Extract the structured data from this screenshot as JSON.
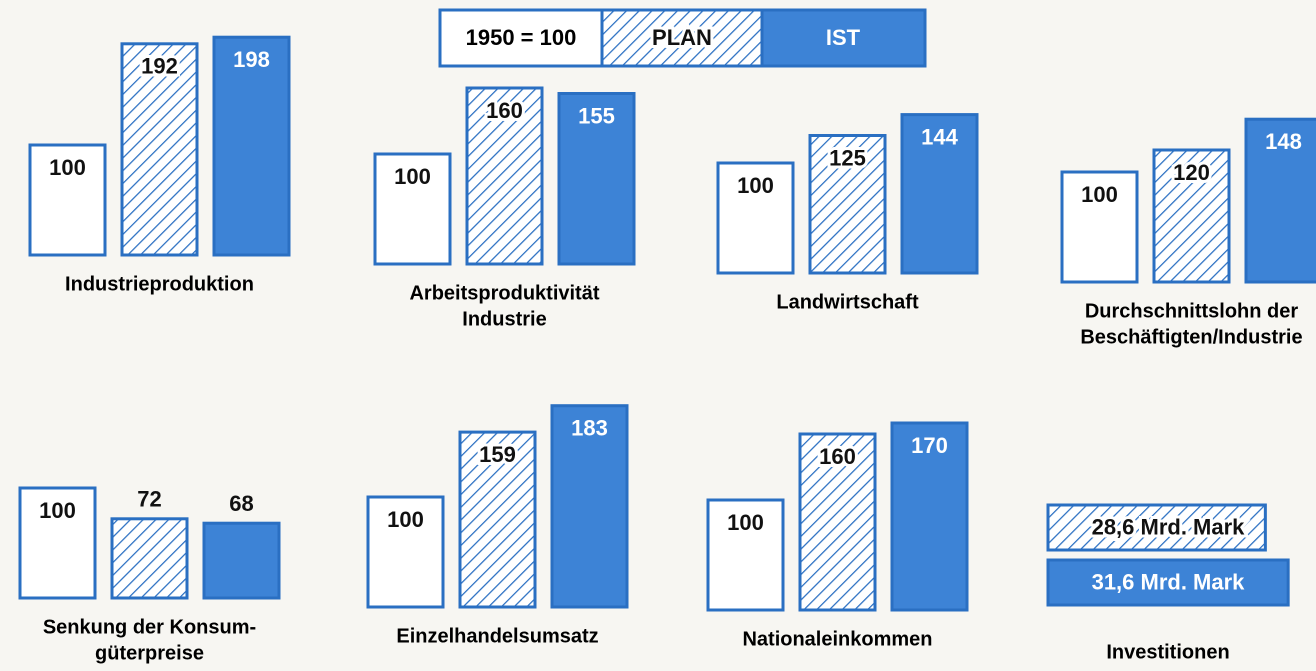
{
  "legend": {
    "base": "1950 = 100",
    "plan": "PLAN",
    "ist": "IST"
  },
  "chart_data": [
    {
      "type": "bar",
      "title": [
        "Industrieproduktion"
      ],
      "values": [
        100,
        192,
        198
      ]
    },
    {
      "type": "bar",
      "title": [
        "Arbeitsproduktivität",
        "Industrie"
      ],
      "values": [
        100,
        160,
        155
      ]
    },
    {
      "type": "bar",
      "title": [
        "Landwirtschaft"
      ],
      "values": [
        100,
        125,
        144
      ]
    },
    {
      "type": "bar",
      "title": [
        "Durchschnittslohn der",
        "Beschäftigten/Industrie"
      ],
      "values": [
        100,
        120,
        148
      ]
    },
    {
      "type": "bar",
      "title": [
        "Senkung der Konsum-",
        "güterpreise"
      ],
      "values": [
        100,
        72,
        68
      ]
    },
    {
      "type": "bar",
      "title": [
        "Einzelhandelsumsatz"
      ],
      "values": [
        100,
        159,
        183
      ]
    },
    {
      "type": "bar",
      "title": [
        "Nationaleinkommen"
      ],
      "values": [
        100,
        160,
        170
      ]
    },
    {
      "type": "barh",
      "title": [
        "Investitionen"
      ],
      "values": [
        28.6,
        31.6
      ],
      "value_labels": [
        "28,6 Mrd. Mark",
        "31,6 Mrd. Mark"
      ]
    }
  ]
}
